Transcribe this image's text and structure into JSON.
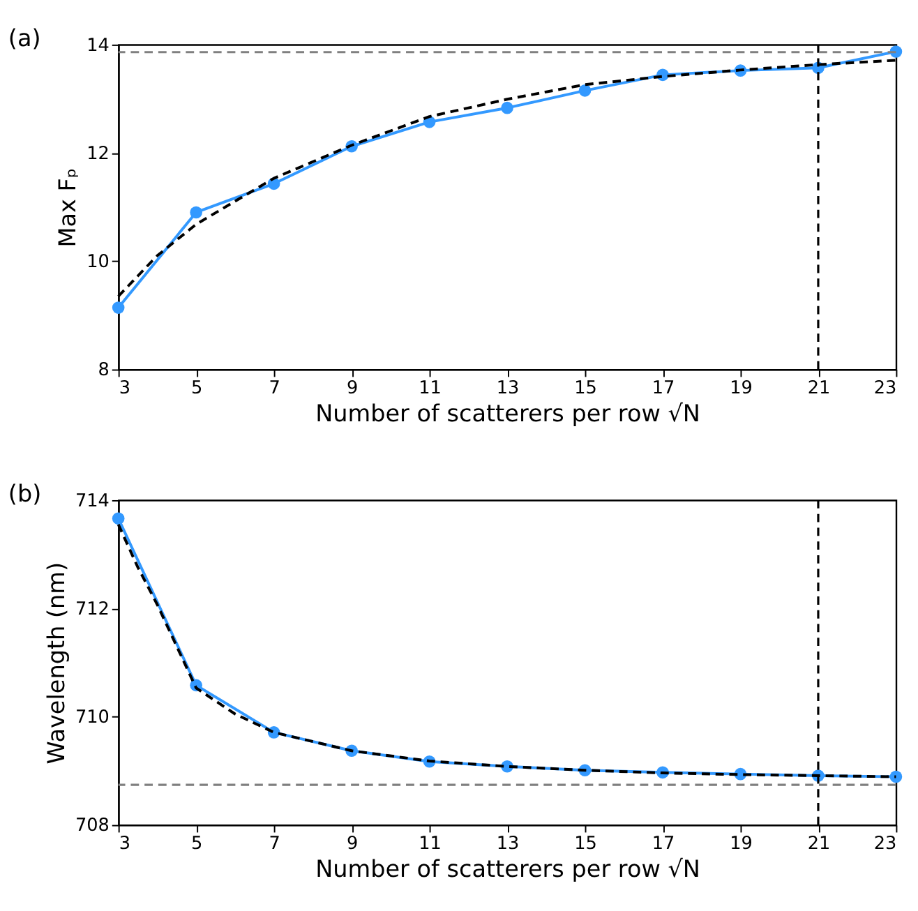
{
  "chart_data": [
    {
      "type": "line",
      "annotations": [
        "(a)"
      ],
      "xlabel": "Number of scatterers per row √N",
      "ylabel": "Max Fₚ",
      "xlim": [
        3,
        23
      ],
      "xticks": [
        3,
        5,
        7,
        9,
        11,
        13,
        15,
        17,
        19,
        21,
        23
      ],
      "ylim": [
        8,
        14
      ],
      "yticks": [
        8,
        10,
        12,
        14
      ],
      "grid": false,
      "legend": false,
      "series": [
        {
          "color": "#3399ff",
          "marker": "circle",
          "line_style": "solid",
          "x": [
            3,
            5,
            7,
            9,
            11,
            13,
            15,
            17,
            19,
            21,
            23
          ],
          "values": [
            9.14,
            10.9,
            11.43,
            12.12,
            12.57,
            12.83,
            13.15,
            13.44,
            13.52,
            13.57,
            13.87
          ]
        },
        {
          "color": "#000000",
          "marker": "none",
          "line_style": "dashed",
          "x": [
            3,
            4,
            5,
            7,
            9,
            11,
            13,
            15,
            17,
            19,
            21,
            23
          ],
          "values": [
            9.35,
            10.1,
            10.68,
            11.53,
            12.14,
            12.67,
            12.99,
            13.26,
            13.41,
            13.53,
            13.63,
            13.71
          ]
        }
      ],
      "ref_lines": [
        {
          "axis": "y",
          "value": 13.86,
          "color": "#808080",
          "line_style": "dashed"
        },
        {
          "axis": "x",
          "value": 21,
          "color": "#000000",
          "line_style": "dashed"
        }
      ]
    },
    {
      "type": "line",
      "annotations": [
        "(b)"
      ],
      "xlabel": "Number of scatterers per row √N",
      "ylabel": "Wavelength (nm)",
      "xlim": [
        3,
        23
      ],
      "xticks": [
        3,
        5,
        7,
        9,
        11,
        13,
        15,
        17,
        19,
        21,
        23
      ],
      "ylim": [
        708,
        714
      ],
      "yticks": [
        708,
        710,
        712,
        714
      ],
      "grid": false,
      "legend": false,
      "series": [
        {
          "color": "#3399ff",
          "marker": "circle",
          "line_style": "solid",
          "x": [
            3,
            5,
            7,
            9,
            11,
            13,
            15,
            17,
            19,
            21,
            23
          ],
          "values": [
            713.66,
            710.58,
            709.71,
            709.37,
            709.17,
            709.08,
            709.01,
            708.97,
            708.94,
            708.91,
            708.89
          ]
        },
        {
          "color": "#000000",
          "marker": "none",
          "line_style": "dashed",
          "x": [
            3,
            3.5,
            4,
            5,
            6,
            7,
            9,
            11,
            13,
            15,
            17,
            19,
            21,
            23
          ],
          "values": [
            713.55,
            712.76,
            712.07,
            710.53,
            710.05,
            709.71,
            709.37,
            709.18,
            709.08,
            709.01,
            708.96,
            708.93,
            708.91,
            708.89
          ]
        }
      ],
      "ref_lines": [
        {
          "axis": "y",
          "value": 708.74,
          "color": "#808080",
          "line_style": "dashed"
        },
        {
          "axis": "x",
          "value": 21,
          "color": "#000000",
          "line_style": "dashed"
        }
      ]
    }
  ]
}
